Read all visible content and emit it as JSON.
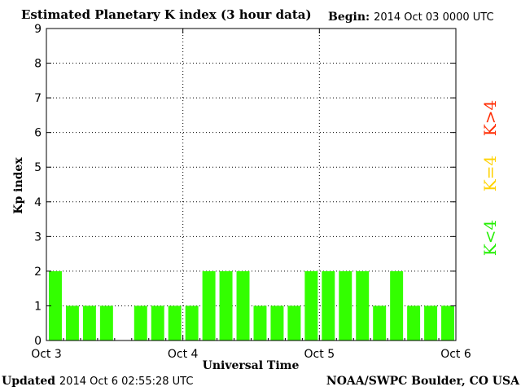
{
  "header": {
    "title": "Estimated Planetary K index (3 hour data)",
    "begin_label": "Begin:",
    "begin_value": "2014 Oct 03 0000 UTC"
  },
  "footer": {
    "updated_label": "Updated",
    "updated_value": "2014 Oct  6 02:55:28 UTC",
    "source": "NOAA/SWPC Boulder, CO USA"
  },
  "legend": [
    {
      "text": "K>4",
      "color": "#ff2a00"
    },
    {
      "text": "K=4",
      "color": "#ffd200"
    },
    {
      "text": "K<4",
      "color": "#22ee00"
    }
  ],
  "colors": {
    "bar": "#33ff00",
    "grid": "#000000"
  },
  "chart_data": {
    "type": "bar",
    "title": "Estimated Planetary K index (3 hour data)",
    "xlabel": "Universal Time",
    "ylabel": "Kp index",
    "ylim": [
      0,
      9
    ],
    "yticks": [
      0,
      1,
      2,
      3,
      4,
      5,
      6,
      7,
      8,
      9
    ],
    "xticks": [
      "Oct 3",
      "Oct 4",
      "Oct 5",
      "Oct 6"
    ],
    "bins_per_day": 8,
    "grid": "dotted vertical at day boundaries, dotted horizontal at each integer",
    "values": [
      2,
      1,
      1,
      1,
      0,
      1,
      1,
      1,
      1,
      2,
      2,
      2,
      1,
      1,
      1,
      2,
      2,
      2,
      2,
      1,
      2,
      1,
      1,
      1
    ]
  }
}
